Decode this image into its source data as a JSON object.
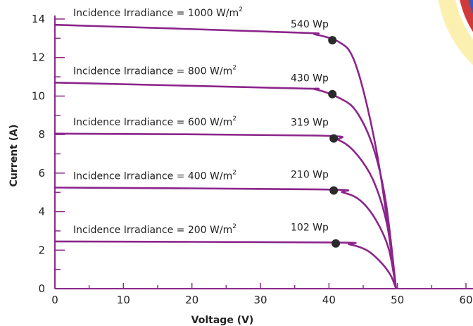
{
  "chart_data": {
    "type": "line",
    "xlabel": "Voltage (V)",
    "ylabel": "Current (A)",
    "xlim": [
      0,
      60
    ],
    "ylim": [
      0,
      14
    ],
    "x_ticks": [
      0,
      10,
      20,
      30,
      40,
      50,
      60
    ],
    "y_tick_labels": [
      {
        "value": 0,
        "label": "0"
      },
      {
        "value": 2,
        "label": "2"
      },
      {
        "value": 4,
        "label": "4"
      },
      {
        "value": 6,
        "label": "6"
      },
      {
        "value": 8,
        "label": "8"
      },
      {
        "value": 10,
        "label": "10"
      },
      {
        "value": 12,
        "label": "12"
      },
      {
        "value": 14,
        "label": "14"
      }
    ],
    "series": [
      {
        "name": "Incidence Irradiance = 1000 W/m²",
        "label_prefix": "Incidence Irradiance = 1000 W/m",
        "power_label": "540 Wp",
        "points": [
          [
            0,
            13.7
          ],
          [
            35,
            13.3
          ],
          [
            38,
            13.2
          ],
          [
            41.5,
            12.8
          ],
          [
            43.5,
            12.0
          ],
          [
            45.5,
            9.6
          ],
          [
            47.5,
            6.0
          ],
          [
            49.8,
            0
          ]
        ],
        "mpp": [
          40.5,
          12.9
        ]
      },
      {
        "name": "Incidence Irradiance = 800 W/m²",
        "label_prefix": "Incidence Irradiance = 800 W/m",
        "power_label": "430  Wp",
        "points": [
          [
            0,
            10.7
          ],
          [
            35,
            10.4
          ],
          [
            38,
            10.35
          ],
          [
            41.5,
            9.9
          ],
          [
            44,
            9.2
          ],
          [
            46.5,
            7.3
          ],
          [
            48.3,
            4.5
          ],
          [
            49.8,
            0
          ]
        ],
        "mpp": [
          40.5,
          10.1
        ]
      },
      {
        "name": "Incidence Irradiance = 600 W/m²",
        "label_prefix": "Incidence Irradiance = 600 W/m",
        "power_label": "319 Wp",
        "points": [
          [
            0,
            8.05
          ],
          [
            38,
            7.95
          ],
          [
            41.5,
            7.7
          ],
          [
            44,
            7.0
          ],
          [
            46.5,
            5.6
          ],
          [
            48.5,
            3.3
          ],
          [
            49.8,
            0
          ]
        ],
        "mpp": [
          40.7,
          7.8
        ]
      },
      {
        "name": "Incidence Irradiance = 400 W/m²",
        "label_prefix": "Incidence Irradiance = 400 W/m",
        "power_label": "210  Wp",
        "points": [
          [
            0,
            5.25
          ],
          [
            39,
            5.15
          ],
          [
            42,
            5.0
          ],
          [
            44.5,
            4.6
          ],
          [
            46.8,
            3.6
          ],
          [
            48.7,
            2.1
          ],
          [
            49.8,
            0
          ]
        ],
        "mpp": [
          40.7,
          5.1
        ]
      },
      {
        "name": "Incidence Irradiance = 200 W/m²",
        "label_prefix": "Incidence Irradiance = 200 W/m",
        "power_label": "102 Wp",
        "points": [
          [
            0,
            2.45
          ],
          [
            40,
            2.4
          ],
          [
            43,
            2.3
          ],
          [
            45.5,
            2.0
          ],
          [
            47.5,
            1.4
          ],
          [
            49,
            0.7
          ],
          [
            49.8,
            0
          ]
        ],
        "mpp": [
          41.0,
          2.35
        ]
      }
    ],
    "superscript": "2",
    "colors": {
      "curve": "#8b258b",
      "axis": "#8a2a8a",
      "dot": "#2a2a2a"
    }
  }
}
